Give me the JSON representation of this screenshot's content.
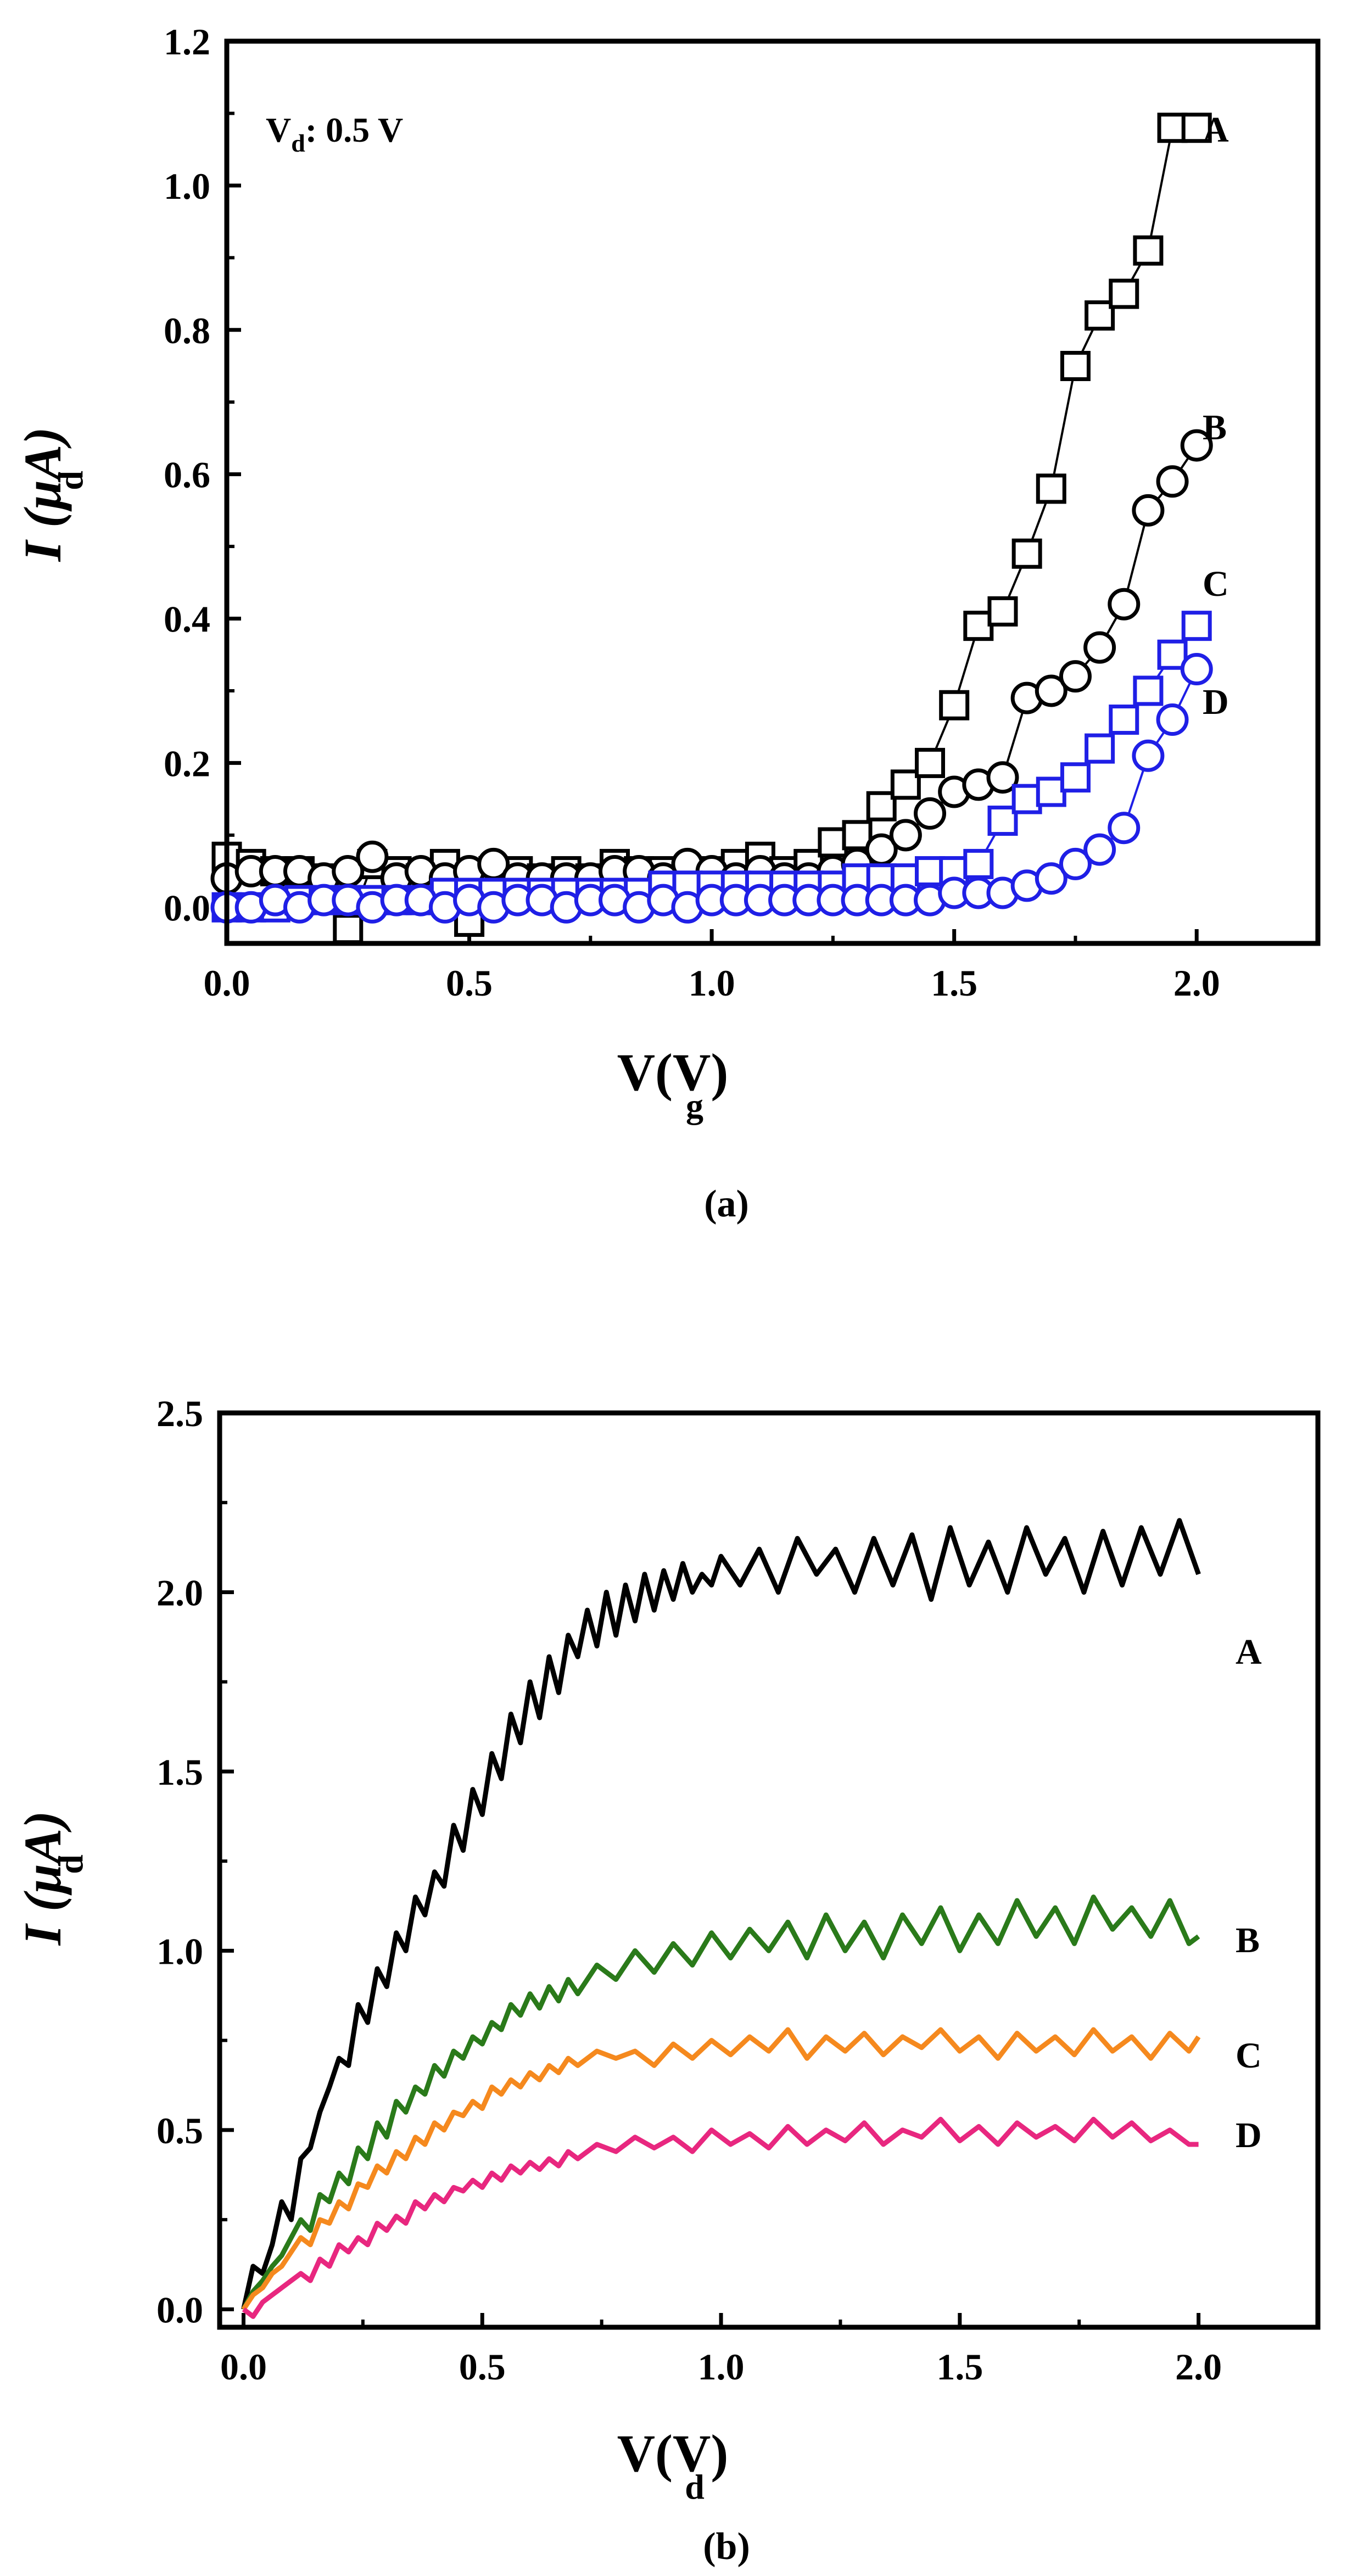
{
  "chart_data": [
    {
      "type": "scatter",
      "panel": "(a)",
      "xlabel": "V(V)",
      "xlabel_sub": "g",
      "ylabel": "I (µA)",
      "ylabel_sub": "d",
      "xlim": [
        0.0,
        2.25
      ],
      "ylim": [
        -0.05,
        1.2
      ],
      "xticks": [
        "0.0",
        "0.5",
        "1.0",
        "1.5",
        "2.0"
      ],
      "yticks": [
        "0.0",
        "0.2",
        "0.4",
        "0.6",
        "0.8",
        "1.0",
        "1.2"
      ],
      "annotation": {
        "prefix": "V",
        "sub": "d",
        "suffix": ": 0.5 V"
      },
      "series": [
        {
          "name": "A",
          "marker": "square",
          "color": "#000000",
          "line": true,
          "x": [
            0.0,
            0.05,
            0.1,
            0.15,
            0.2,
            0.25,
            0.3,
            0.35,
            0.4,
            0.45,
            0.5,
            0.55,
            0.6,
            0.65,
            0.7,
            0.75,
            0.8,
            0.85,
            0.9,
            0.95,
            1.0,
            1.05,
            1.1,
            1.15,
            1.2,
            1.25,
            1.3,
            1.35,
            1.4,
            1.45,
            1.5,
            1.55,
            1.6,
            1.65,
            1.7,
            1.75,
            1.8,
            1.85,
            1.9,
            1.95,
            2.0
          ],
          "y": [
            0.07,
            0.06,
            0.05,
            0.05,
            0.04,
            -0.03,
            0.06,
            0.05,
            0.04,
            0.06,
            -0.02,
            0.05,
            0.05,
            0.04,
            0.05,
            0.04,
            0.06,
            0.05,
            0.05,
            0.04,
            0.05,
            0.06,
            0.07,
            0.05,
            0.06,
            0.09,
            0.1,
            0.14,
            0.17,
            0.2,
            0.28,
            0.39,
            0.41,
            0.49,
            0.58,
            0.75,
            0.82,
            0.85,
            0.91,
            1.08,
            1.08
          ]
        },
        {
          "name": "B",
          "marker": "circle",
          "color": "#000000",
          "line": true,
          "x": [
            0.0,
            0.05,
            0.1,
            0.15,
            0.2,
            0.25,
            0.3,
            0.35,
            0.4,
            0.45,
            0.5,
            0.55,
            0.6,
            0.65,
            0.7,
            0.75,
            0.8,
            0.85,
            0.9,
            0.95,
            1.0,
            1.05,
            1.1,
            1.15,
            1.2,
            1.25,
            1.3,
            1.35,
            1.4,
            1.45,
            1.5,
            1.55,
            1.6,
            1.65,
            1.7,
            1.75,
            1.8,
            1.85,
            1.9,
            1.95,
            2.0
          ],
          "y": [
            0.04,
            0.05,
            0.05,
            0.05,
            0.04,
            0.05,
            0.07,
            0.04,
            0.05,
            0.04,
            0.05,
            0.06,
            0.04,
            0.04,
            0.04,
            0.04,
            0.05,
            0.05,
            0.04,
            0.06,
            0.05,
            0.04,
            0.05,
            0.04,
            0.04,
            0.05,
            0.06,
            0.08,
            0.1,
            0.13,
            0.16,
            0.17,
            0.18,
            0.29,
            0.3,
            0.32,
            0.36,
            0.42,
            0.55,
            0.59,
            0.64
          ]
        },
        {
          "name": "C",
          "marker": "square",
          "color": "#1f1fe6",
          "line": true,
          "x": [
            0.0,
            0.05,
            0.1,
            0.15,
            0.2,
            0.25,
            0.3,
            0.35,
            0.4,
            0.45,
            0.5,
            0.55,
            0.6,
            0.65,
            0.7,
            0.75,
            0.8,
            0.85,
            0.9,
            0.95,
            1.0,
            1.05,
            1.1,
            1.15,
            1.2,
            1.25,
            1.3,
            1.35,
            1.4,
            1.45,
            1.5,
            1.55,
            1.6,
            1.65,
            1.7,
            1.75,
            1.8,
            1.85,
            1.9,
            1.95,
            2.0
          ],
          "y": [
            0.0,
            0.0,
            0.0,
            0.01,
            0.01,
            0.01,
            0.01,
            0.01,
            0.01,
            0.02,
            0.02,
            0.02,
            0.02,
            0.02,
            0.02,
            0.02,
            0.02,
            0.02,
            0.03,
            0.03,
            0.03,
            0.03,
            0.03,
            0.03,
            0.03,
            0.03,
            0.04,
            0.04,
            0.04,
            0.05,
            0.05,
            0.06,
            0.12,
            0.15,
            0.16,
            0.18,
            0.22,
            0.26,
            0.3,
            0.35,
            0.39
          ]
        },
        {
          "name": "D",
          "marker": "circle",
          "color": "#1f1fe6",
          "line": true,
          "x": [
            0.0,
            0.05,
            0.1,
            0.15,
            0.2,
            0.25,
            0.3,
            0.35,
            0.4,
            0.45,
            0.5,
            0.55,
            0.6,
            0.65,
            0.7,
            0.75,
            0.8,
            0.85,
            0.9,
            0.95,
            1.0,
            1.05,
            1.1,
            1.15,
            1.2,
            1.25,
            1.3,
            1.35,
            1.4,
            1.45,
            1.5,
            1.55,
            1.6,
            1.65,
            1.7,
            1.75,
            1.8,
            1.85,
            1.9,
            1.95,
            2.0
          ],
          "y": [
            0.0,
            0.0,
            0.01,
            0.0,
            0.01,
            0.01,
            0.0,
            0.01,
            0.01,
            0.0,
            0.01,
            0.0,
            0.01,
            0.01,
            0.0,
            0.01,
            0.01,
            0.0,
            0.01,
            0.0,
            0.01,
            0.01,
            0.01,
            0.01,
            0.01,
            0.01,
            0.01,
            0.01,
            0.01,
            0.01,
            0.02,
            0.02,
            0.02,
            0.03,
            0.04,
            0.06,
            0.08,
            0.11,
            0.21,
            0.26,
            0.33
          ]
        }
      ]
    },
    {
      "type": "line",
      "panel": "(b)",
      "xlabel": "V(V)",
      "xlabel_sub": "d",
      "ylabel": "I (µA)",
      "ylabel_sub": "d",
      "xlim": [
        -0.05,
        2.25
      ],
      "ylim": [
        -0.05,
        2.5
      ],
      "xticks": [
        "0.0",
        "0.5",
        "1.0",
        "1.5",
        "2.0"
      ],
      "yticks": [
        "0.0",
        "0.5",
        "1.0",
        "1.5",
        "2.0",
        "2.5"
      ],
      "series": [
        {
          "name": "A",
          "color": "#000000",
          "x": [
            0.0,
            0.02,
            0.04,
            0.06,
            0.08,
            0.1,
            0.12,
            0.14,
            0.16,
            0.18,
            0.2,
            0.22,
            0.24,
            0.26,
            0.28,
            0.3,
            0.32,
            0.34,
            0.36,
            0.38,
            0.4,
            0.42,
            0.44,
            0.46,
            0.48,
            0.5,
            0.52,
            0.54,
            0.56,
            0.58,
            0.6,
            0.62,
            0.64,
            0.66,
            0.68,
            0.7,
            0.72,
            0.74,
            0.76,
            0.78,
            0.8,
            0.82,
            0.84,
            0.86,
            0.88,
            0.9,
            0.92,
            0.94,
            0.96,
            0.98,
            1.0,
            1.04,
            1.08,
            1.12,
            1.16,
            1.2,
            1.24,
            1.28,
            1.32,
            1.36,
            1.4,
            1.44,
            1.48,
            1.52,
            1.56,
            1.6,
            1.64,
            1.68,
            1.72,
            1.76,
            1.8,
            1.84,
            1.88,
            1.92,
            1.96,
            2.0
          ],
          "y": [
            0.0,
            0.12,
            0.1,
            0.18,
            0.3,
            0.25,
            0.42,
            0.45,
            0.55,
            0.62,
            0.7,
            0.68,
            0.85,
            0.8,
            0.95,
            0.9,
            1.05,
            1.0,
            1.15,
            1.1,
            1.22,
            1.18,
            1.35,
            1.28,
            1.45,
            1.38,
            1.55,
            1.48,
            1.66,
            1.58,
            1.75,
            1.65,
            1.82,
            1.72,
            1.88,
            1.82,
            1.95,
            1.85,
            2.0,
            1.88,
            2.02,
            1.92,
            2.05,
            1.95,
            2.06,
            1.98,
            2.08,
            2.0,
            2.05,
            2.02,
            2.1,
            2.02,
            2.12,
            2.0,
            2.15,
            2.05,
            2.12,
            2.0,
            2.15,
            2.02,
            2.16,
            1.98,
            2.18,
            2.02,
            2.14,
            2.0,
            2.18,
            2.05,
            2.15,
            2.0,
            2.17,
            2.02,
            2.18,
            2.05,
            2.2,
            2.05
          ]
        },
        {
          "name": "B",
          "color": "#2a7a1a",
          "x": [
            0.0,
            0.02,
            0.04,
            0.06,
            0.08,
            0.1,
            0.12,
            0.14,
            0.16,
            0.18,
            0.2,
            0.22,
            0.24,
            0.26,
            0.28,
            0.3,
            0.32,
            0.34,
            0.36,
            0.38,
            0.4,
            0.42,
            0.44,
            0.46,
            0.48,
            0.5,
            0.52,
            0.54,
            0.56,
            0.58,
            0.6,
            0.62,
            0.64,
            0.66,
            0.68,
            0.7,
            0.74,
            0.78,
            0.82,
            0.86,
            0.9,
            0.94,
            0.98,
            1.02,
            1.06,
            1.1,
            1.14,
            1.18,
            1.22,
            1.26,
            1.3,
            1.34,
            1.38,
            1.42,
            1.46,
            1.5,
            1.54,
            1.58,
            1.62,
            1.66,
            1.7,
            1.74,
            1.78,
            1.82,
            1.86,
            1.9,
            1.94,
            1.98,
            2.0
          ],
          "y": [
            0.0,
            0.05,
            0.08,
            0.12,
            0.15,
            0.2,
            0.25,
            0.22,
            0.32,
            0.3,
            0.38,
            0.35,
            0.45,
            0.42,
            0.52,
            0.48,
            0.58,
            0.55,
            0.62,
            0.6,
            0.68,
            0.65,
            0.72,
            0.7,
            0.76,
            0.74,
            0.8,
            0.78,
            0.85,
            0.82,
            0.88,
            0.84,
            0.9,
            0.86,
            0.92,
            0.88,
            0.96,
            0.92,
            1.0,
            0.94,
            1.02,
            0.96,
            1.05,
            0.98,
            1.06,
            1.0,
            1.08,
            0.98,
            1.1,
            1.0,
            1.08,
            0.98,
            1.1,
            1.02,
            1.12,
            1.0,
            1.1,
            1.02,
            1.14,
            1.04,
            1.12,
            1.02,
            1.15,
            1.06,
            1.12,
            1.04,
            1.14,
            1.02,
            1.04
          ]
        },
        {
          "name": "C",
          "color": "#f5891e",
          "x": [
            0.0,
            0.02,
            0.04,
            0.06,
            0.08,
            0.1,
            0.12,
            0.14,
            0.16,
            0.18,
            0.2,
            0.22,
            0.24,
            0.26,
            0.28,
            0.3,
            0.32,
            0.34,
            0.36,
            0.38,
            0.4,
            0.42,
            0.44,
            0.46,
            0.48,
            0.5,
            0.52,
            0.54,
            0.56,
            0.58,
            0.6,
            0.62,
            0.64,
            0.66,
            0.68,
            0.7,
            0.74,
            0.78,
            0.82,
            0.86,
            0.9,
            0.94,
            0.98,
            1.02,
            1.06,
            1.1,
            1.14,
            1.18,
            1.22,
            1.26,
            1.3,
            1.34,
            1.38,
            1.42,
            1.46,
            1.5,
            1.54,
            1.58,
            1.62,
            1.66,
            1.7,
            1.74,
            1.78,
            1.82,
            1.86,
            1.9,
            1.94,
            1.98,
            2.0
          ],
          "y": [
            0.0,
            0.04,
            0.06,
            0.1,
            0.12,
            0.16,
            0.2,
            0.18,
            0.25,
            0.24,
            0.3,
            0.28,
            0.35,
            0.34,
            0.4,
            0.38,
            0.44,
            0.42,
            0.48,
            0.46,
            0.52,
            0.5,
            0.55,
            0.54,
            0.58,
            0.56,
            0.62,
            0.6,
            0.64,
            0.62,
            0.66,
            0.64,
            0.68,
            0.66,
            0.7,
            0.68,
            0.72,
            0.7,
            0.72,
            0.68,
            0.74,
            0.7,
            0.75,
            0.71,
            0.76,
            0.72,
            0.78,
            0.7,
            0.76,
            0.72,
            0.77,
            0.71,
            0.76,
            0.73,
            0.78,
            0.72,
            0.76,
            0.7,
            0.77,
            0.72,
            0.76,
            0.71,
            0.78,
            0.72,
            0.76,
            0.7,
            0.77,
            0.72,
            0.76
          ]
        },
        {
          "name": "D",
          "color": "#e8277f",
          "x": [
            0.0,
            0.02,
            0.04,
            0.06,
            0.08,
            0.1,
            0.12,
            0.14,
            0.16,
            0.18,
            0.2,
            0.22,
            0.24,
            0.26,
            0.28,
            0.3,
            0.32,
            0.34,
            0.36,
            0.38,
            0.4,
            0.42,
            0.44,
            0.46,
            0.48,
            0.5,
            0.52,
            0.54,
            0.56,
            0.58,
            0.6,
            0.62,
            0.64,
            0.66,
            0.68,
            0.7,
            0.74,
            0.78,
            0.82,
            0.86,
            0.9,
            0.94,
            0.98,
            1.02,
            1.06,
            1.1,
            1.14,
            1.18,
            1.22,
            1.26,
            1.3,
            1.34,
            1.38,
            1.42,
            1.46,
            1.5,
            1.54,
            1.58,
            1.62,
            1.66,
            1.7,
            1.74,
            1.78,
            1.82,
            1.86,
            1.9,
            1.94,
            1.98,
            2.0
          ],
          "y": [
            0.0,
            -0.02,
            0.02,
            0.04,
            0.06,
            0.08,
            0.1,
            0.08,
            0.14,
            0.12,
            0.18,
            0.16,
            0.2,
            0.18,
            0.24,
            0.22,
            0.26,
            0.24,
            0.3,
            0.28,
            0.32,
            0.3,
            0.34,
            0.33,
            0.36,
            0.34,
            0.38,
            0.36,
            0.4,
            0.38,
            0.41,
            0.39,
            0.42,
            0.4,
            0.44,
            0.42,
            0.46,
            0.44,
            0.48,
            0.45,
            0.48,
            0.44,
            0.5,
            0.46,
            0.49,
            0.45,
            0.51,
            0.46,
            0.5,
            0.47,
            0.52,
            0.46,
            0.5,
            0.48,
            0.53,
            0.47,
            0.51,
            0.46,
            0.52,
            0.48,
            0.51,
            0.47,
            0.53,
            0.48,
            0.52,
            0.47,
            0.5,
            0.46,
            0.46
          ]
        }
      ]
    }
  ]
}
